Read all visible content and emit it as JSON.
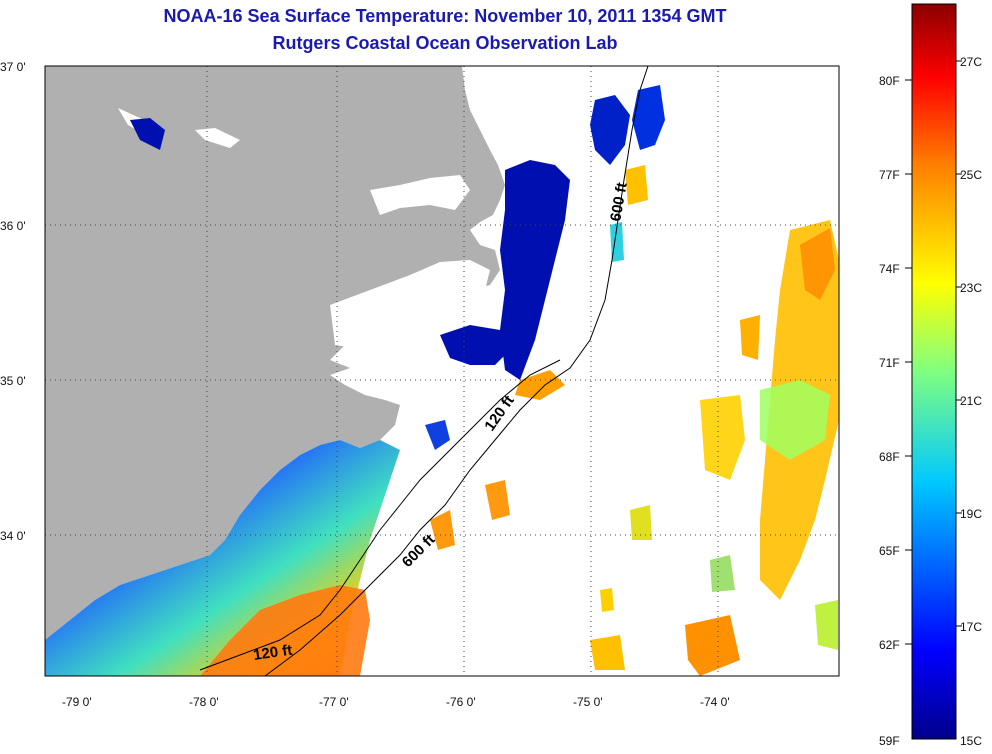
{
  "title": "NOAA-16 Sea Surface Temperature:  November 10, 2011 1354 GMT",
  "subtitle": "Rutgers Coastal Ocean Observation Lab",
  "axes": {
    "lat_labels": [
      "37 0'",
      "36 0'",
      "35 0'",
      "34 0'"
    ],
    "lon_labels": [
      "-79 0'",
      "-78 0'",
      "-77 0'",
      "-76 0'",
      "-75 0'",
      "-74 0'"
    ]
  },
  "contours": {
    "shelf_120": "120 ft",
    "shelf_600": "600 ft"
  },
  "colorbar": {
    "fahrenheit": [
      "80F",
      "77F",
      "74F",
      "71F",
      "68F",
      "65F",
      "62F",
      "59F"
    ],
    "celsius": [
      "27C",
      "25C",
      "23C",
      "21C",
      "19C",
      "17C",
      "15C"
    ]
  },
  "colors": {
    "land": "#b0b0b0",
    "title": "#1a1ab0",
    "cold": "#00008b",
    "warm": "#8b0000"
  }
}
